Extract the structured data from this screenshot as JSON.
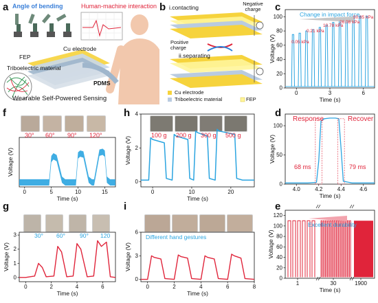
{
  "figure": {
    "panel_labels": [
      "a",
      "b",
      "c",
      "d",
      "e",
      "f",
      "g",
      "h",
      "i"
    ],
    "colors": {
      "red": "#e0243a",
      "blue": "#2aa4e0",
      "yellow": "#f6d33c",
      "gray": "#777777"
    },
    "a": {
      "angle_title": "Angle of bending",
      "hmi_title": "Human-machine interaction",
      "fep": "FEP",
      "cu": "Cu electrode",
      "tribo": "Triboelectric material",
      "pdms": "PDMS",
      "bottom": "Wearable Self-Powered Sensing"
    },
    "b": {
      "contacting": "i.contacting",
      "negative": "Negative charge",
      "positive": "Positive charge",
      "separating": "ii.separating",
      "legend": [
        "Cu electrode",
        "Triboelectric material",
        "FEP"
      ]
    },
    "c": {
      "annotation": "Change in impact force",
      "pressures": [
        "0.05 kPa",
        "0.21 kPa",
        "10.78 kPa",
        "26.08 kPa",
        "50.85 kPa"
      ]
    },
    "d": {
      "response": "Response",
      "recover": "Recover",
      "t_resp": "68 ms",
      "t_rec": "79 ms"
    },
    "e": {
      "annotation": "Excellent durability"
    },
    "f": {
      "angles": [
        "30°",
        "60°",
        "90°",
        "120°"
      ]
    },
    "g": {
      "angles": [
        "30°",
        "60°",
        "90°",
        "120"
      ]
    },
    "h": {
      "masses": [
        "100 g",
        "200 g",
        "300 g",
        "500 g"
      ]
    },
    "i": {
      "annotation": "Different hand gestures"
    }
  },
  "chart_data": [
    {
      "id": "c",
      "type": "line",
      "color": "#2aa4e0",
      "xlabel": "Time (s)",
      "ylabel": "Voltage (V)",
      "xlim": [
        -1,
        7
      ],
      "ylim": [
        0,
        110
      ],
      "xticks": [
        "0",
        "3",
        "6"
      ],
      "yticks": [
        "0",
        "20",
        "40",
        "60",
        "80",
        "100"
      ],
      "peaks_x": [
        -0.3,
        0.3,
        0.9,
        1.5,
        2.1,
        2.7,
        3.3,
        3.9,
        4.5,
        5.1,
        5.7,
        6.3
      ],
      "peaks_y": [
        75,
        77,
        80,
        82,
        85,
        88,
        92,
        96,
        99,
        100,
        101,
        101
      ]
    },
    {
      "id": "d",
      "type": "line",
      "color": "#2aa4e0",
      "xlabel": "Time (s)",
      "ylabel": "Voltage (V)",
      "xlim": [
        3.9,
        4.7
      ],
      "ylim": [
        0,
        120
      ],
      "xticks": [
        "4.0",
        "4.2",
        "4.4",
        "4.6"
      ],
      "yticks": [
        "0",
        "50",
        "100"
      ],
      "x": [
        3.9,
        4.0,
        4.1,
        4.18,
        4.2,
        4.22,
        4.25,
        4.3,
        4.35,
        4.38,
        4.4,
        4.42,
        4.5,
        4.6,
        4.7
      ],
      "y": [
        2,
        2,
        2,
        3,
        40,
        108,
        112,
        113,
        113,
        112,
        60,
        5,
        2,
        2,
        2
      ]
    },
    {
      "id": "e",
      "type": "line",
      "color": "#e0243a",
      "xlabel": "Time (s)",
      "ylabel": "Voltage (V)",
      "ylim": [
        0,
        130
      ],
      "xticks": [
        "1",
        "30",
        "1900"
      ],
      "yticks": [
        "0",
        "20",
        "40",
        "60",
        "80",
        "100",
        "120"
      ],
      "pulse_value": 110
    },
    {
      "id": "f",
      "type": "area",
      "color": "#2aa4e0",
      "xlabel": "Time (s)",
      "ylabel": "Voltage (V)",
      "xlim": [
        -1,
        17
      ],
      "ylim": [
        -0.5,
        5
      ],
      "xticks": [
        "0",
        "5",
        "10",
        "15"
      ],
      "x": [
        -1,
        0,
        1,
        2,
        2.6,
        3,
        4,
        4.6,
        5,
        5.4,
        6,
        7,
        7.6,
        8,
        9,
        9.6,
        10,
        10.4,
        11,
        12,
        12.6,
        13,
        14,
        14.6,
        15,
        15.4,
        16,
        17
      ],
      "y": [
        0,
        0,
        0,
        0,
        0,
        0,
        0,
        0,
        2.6,
        2.9,
        2.7,
        0.3,
        0,
        0,
        0,
        0,
        3.0,
        3.2,
        3.1,
        0.3,
        0,
        0,
        3.3,
        3.4,
        3.2,
        0.3,
        0,
        0
      ]
    },
    {
      "id": "g",
      "type": "line",
      "color": "#e0243a",
      "xlabel": "Time (s)",
      "ylabel": "Voltage (V)",
      "xlim": [
        -0.5,
        7
      ],
      "ylim": [
        -0.3,
        3.2
      ],
      "xticks": [
        "0",
        "2",
        "4",
        "6"
      ],
      "yticks": [
        "0",
        "1",
        "2",
        "3"
      ],
      "x": [
        -0.5,
        0,
        0.7,
        1.0,
        1.3,
        1.6,
        2.2,
        2.5,
        2.8,
        3.2,
        3.7,
        4.0,
        4.3,
        4.8,
        5.3,
        5.6,
        5.9,
        6.3,
        6.6,
        7
      ],
      "y": [
        0,
        0,
        0.1,
        1.0,
        0.7,
        0.05,
        0.1,
        2.2,
        1.8,
        0.05,
        0.1,
        2.4,
        2.0,
        0.05,
        0.1,
        2.6,
        2.2,
        2.5,
        0.05,
        0
      ]
    },
    {
      "id": "h",
      "type": "line",
      "color": "#2aa4e0",
      "xlabel": "Time (s)",
      "ylabel": "Voltage (V)",
      "xlim": [
        -3,
        26
      ],
      "ylim": [
        -0.3,
        4
      ],
      "xticks": [
        "0",
        "10",
        "20"
      ],
      "yticks": [
        "0",
        "2",
        "4"
      ],
      "x": [
        -3,
        -1,
        -0.5,
        0,
        3,
        3.5,
        5,
        5.5,
        6,
        9,
        9.5,
        10.5,
        11,
        11.5,
        14,
        14.5,
        16,
        16.5,
        17,
        21,
        21.5,
        23,
        26
      ],
      "y": [
        0.1,
        0.1,
        2.6,
        2.5,
        2.3,
        0.2,
        0.1,
        2.8,
        2.7,
        2.5,
        0.2,
        0.1,
        3.0,
        2.9,
        2.7,
        0.2,
        0.1,
        3.1,
        3.0,
        2.8,
        0.2,
        0.1,
        0.1
      ]
    },
    {
      "id": "i",
      "type": "line",
      "color": "#e0243a",
      "xlabel": "Time (s)",
      "ylabel": "Voltage (V)",
      "xlim": [
        -0.5,
        8
      ],
      "ylim": [
        -0.3,
        6
      ],
      "xticks": [
        "0",
        "2",
        "4",
        "6",
        "8"
      ],
      "yticks": [
        "0",
        "3",
        "6"
      ],
      "x": [
        -0.5,
        0,
        0.3,
        0.5,
        1.0,
        1.3,
        2.0,
        2.3,
        2.5,
        3.0,
        3.3,
        4.0,
        4.3,
        4.5,
        5.0,
        5.3,
        6.0,
        6.3,
        6.5,
        7.0,
        7.3,
        8
      ],
      "y": [
        0,
        0,
        3.0,
        2.8,
        2.6,
        0.1,
        0,
        3.1,
        2.9,
        2.7,
        0.1,
        0,
        3.0,
        2.8,
        2.6,
        0.1,
        0,
        3.2,
        3.0,
        2.7,
        0.1,
        0
      ]
    }
  ]
}
